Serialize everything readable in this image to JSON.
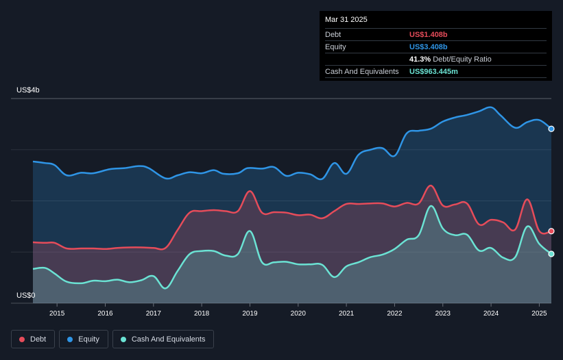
{
  "tooltip": {
    "date": "Mar 31 2025",
    "rows": [
      {
        "label": "Debt",
        "value": "US$1.408b",
        "color": "#e64c5a"
      },
      {
        "label": "Equity",
        "value": "US$3.408b",
        "color": "#2f95e6"
      },
      {
        "label": "",
        "value": "41.3%",
        "note": "Debt/Equity Ratio",
        "color": "#ffffff"
      },
      {
        "label": "Cash And Equivalents",
        "value": "US$963.445m",
        "color": "#6be3d4"
      }
    ]
  },
  "legend": [
    {
      "label": "Debt",
      "color": "#e64c5a"
    },
    {
      "label": "Equity",
      "color": "#2f95e6"
    },
    {
      "label": "Cash And Equivalents",
      "color": "#6be3d4"
    }
  ],
  "chart_data": {
    "type": "area",
    "y_top_label": "US$4b",
    "y_bottom_label": "US$0",
    "ylim": [
      0,
      4
    ],
    "xlim": [
      2014.5,
      2025.25
    ],
    "x_ticks": [
      2015,
      2016,
      2017,
      2018,
      2019,
      2020,
      2021,
      2022,
      2023,
      2024,
      2025
    ],
    "x_tick_labels": [
      "2015",
      "2016",
      "2017",
      "2018",
      "2019",
      "2020",
      "2021",
      "2022",
      "2023",
      "2024",
      "2025"
    ],
    "grid": true,
    "series": [
      {
        "name": "Equity",
        "color": "#2f95e6",
        "points": [
          [
            2014.5,
            2.77
          ],
          [
            2014.75,
            2.74
          ],
          [
            2014.95,
            2.7
          ],
          [
            2015.2,
            2.5
          ],
          [
            2015.5,
            2.55
          ],
          [
            2015.75,
            2.54
          ],
          [
            2016.1,
            2.62
          ],
          [
            2016.4,
            2.64
          ],
          [
            2016.7,
            2.68
          ],
          [
            2016.9,
            2.64
          ],
          [
            2017.25,
            2.44
          ],
          [
            2017.5,
            2.5
          ],
          [
            2017.75,
            2.56
          ],
          [
            2018.0,
            2.54
          ],
          [
            2018.25,
            2.6
          ],
          [
            2018.45,
            2.53
          ],
          [
            2018.75,
            2.54
          ],
          [
            2018.95,
            2.64
          ],
          [
            2019.25,
            2.63
          ],
          [
            2019.5,
            2.66
          ],
          [
            2019.75,
            2.49
          ],
          [
            2020.0,
            2.55
          ],
          [
            2020.25,
            2.52
          ],
          [
            2020.5,
            2.43
          ],
          [
            2020.75,
            2.74
          ],
          [
            2021.0,
            2.53
          ],
          [
            2021.25,
            2.9
          ],
          [
            2021.5,
            3.0
          ],
          [
            2021.75,
            3.03
          ],
          [
            2022.0,
            2.88
          ],
          [
            2022.25,
            3.32
          ],
          [
            2022.5,
            3.37
          ],
          [
            2022.75,
            3.41
          ],
          [
            2023.0,
            3.55
          ],
          [
            2023.25,
            3.63
          ],
          [
            2023.5,
            3.68
          ],
          [
            2023.75,
            3.75
          ],
          [
            2024.0,
            3.83
          ],
          [
            2024.2,
            3.67
          ],
          [
            2024.5,
            3.43
          ],
          [
            2024.75,
            3.54
          ],
          [
            2025.0,
            3.58
          ],
          [
            2025.25,
            3.408
          ]
        ]
      },
      {
        "name": "Debt",
        "color": "#e64c5a",
        "points": [
          [
            2014.5,
            1.19
          ],
          [
            2014.75,
            1.18
          ],
          [
            2014.95,
            1.18
          ],
          [
            2015.2,
            1.07
          ],
          [
            2015.5,
            1.07
          ],
          [
            2015.75,
            1.07
          ],
          [
            2016.0,
            1.06
          ],
          [
            2016.25,
            1.08
          ],
          [
            2016.5,
            1.09
          ],
          [
            2016.75,
            1.09
          ],
          [
            2017.0,
            1.08
          ],
          [
            2017.25,
            1.08
          ],
          [
            2017.5,
            1.43
          ],
          [
            2017.75,
            1.77
          ],
          [
            2018.0,
            1.8
          ],
          [
            2018.25,
            1.82
          ],
          [
            2018.5,
            1.8
          ],
          [
            2018.75,
            1.8
          ],
          [
            2019.0,
            2.19
          ],
          [
            2019.25,
            1.77
          ],
          [
            2019.5,
            1.78
          ],
          [
            2019.75,
            1.77
          ],
          [
            2020.0,
            1.72
          ],
          [
            2020.25,
            1.73
          ],
          [
            2020.5,
            1.66
          ],
          [
            2020.75,
            1.8
          ],
          [
            2021.0,
            1.94
          ],
          [
            2021.25,
            1.94
          ],
          [
            2021.5,
            1.95
          ],
          [
            2021.75,
            1.95
          ],
          [
            2022.0,
            1.89
          ],
          [
            2022.25,
            1.96
          ],
          [
            2022.5,
            1.95
          ],
          [
            2022.75,
            2.3
          ],
          [
            2023.0,
            1.91
          ],
          [
            2023.25,
            1.93
          ],
          [
            2023.5,
            1.95
          ],
          [
            2023.75,
            1.54
          ],
          [
            2024.0,
            1.63
          ],
          [
            2024.25,
            1.58
          ],
          [
            2024.5,
            1.44
          ],
          [
            2024.75,
            2.03
          ],
          [
            2025.0,
            1.41
          ],
          [
            2025.25,
            1.408
          ]
        ]
      },
      {
        "name": "Cash And Equivalents",
        "color": "#6be3d4",
        "points": [
          [
            2014.5,
            0.67
          ],
          [
            2014.75,
            0.69
          ],
          [
            2014.95,
            0.58
          ],
          [
            2015.2,
            0.42
          ],
          [
            2015.5,
            0.39
          ],
          [
            2015.75,
            0.44
          ],
          [
            2016.0,
            0.43
          ],
          [
            2016.25,
            0.46
          ],
          [
            2016.5,
            0.41
          ],
          [
            2016.75,
            0.45
          ],
          [
            2017.0,
            0.53
          ],
          [
            2017.25,
            0.29
          ],
          [
            2017.5,
            0.63
          ],
          [
            2017.75,
            0.96
          ],
          [
            2018.0,
            1.02
          ],
          [
            2018.25,
            1.02
          ],
          [
            2018.5,
            0.93
          ],
          [
            2018.75,
            0.96
          ],
          [
            2019.0,
            1.41
          ],
          [
            2019.25,
            0.8
          ],
          [
            2019.5,
            0.8
          ],
          [
            2019.75,
            0.81
          ],
          [
            2020.0,
            0.76
          ],
          [
            2020.25,
            0.76
          ],
          [
            2020.5,
            0.75
          ],
          [
            2020.75,
            0.51
          ],
          [
            2021.0,
            0.72
          ],
          [
            2021.25,
            0.8
          ],
          [
            2021.5,
            0.9
          ],
          [
            2021.75,
            0.95
          ],
          [
            2022.0,
            1.06
          ],
          [
            2022.25,
            1.24
          ],
          [
            2022.5,
            1.33
          ],
          [
            2022.75,
            1.9
          ],
          [
            2023.0,
            1.46
          ],
          [
            2023.25,
            1.33
          ],
          [
            2023.5,
            1.34
          ],
          [
            2023.75,
            1.03
          ],
          [
            2024.0,
            1.08
          ],
          [
            2024.25,
            0.89
          ],
          [
            2024.5,
            0.9
          ],
          [
            2024.75,
            1.5
          ],
          [
            2025.0,
            1.16
          ],
          [
            2025.25,
            0.963
          ]
        ]
      }
    ]
  }
}
